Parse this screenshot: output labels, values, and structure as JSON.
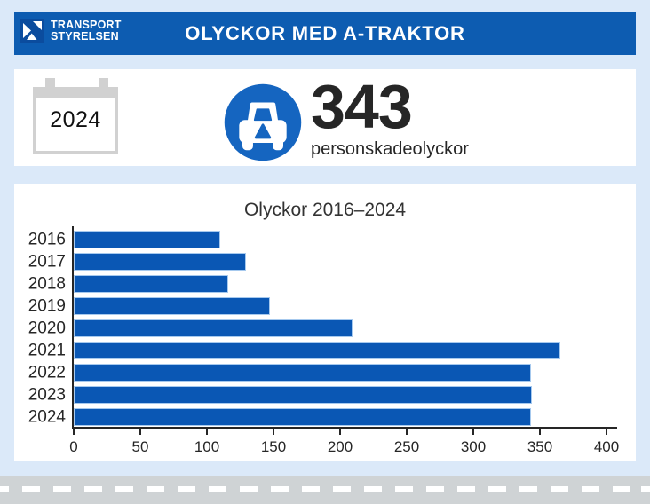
{
  "header": {
    "logo_line1": "TRANSPORT",
    "logo_line2": "STYRELSEN",
    "title": "OLYCKOR MED A-TRAKTOR"
  },
  "summary": {
    "year": "2024",
    "count": "343",
    "count_label": "personskadeolyckor"
  },
  "chart_data": {
    "type": "bar",
    "orientation": "horizontal",
    "title": "Olyckor 2016–2024",
    "categories": [
      "2016",
      "2017",
      "2018",
      "2019",
      "2020",
      "2021",
      "2022",
      "2023",
      "2024"
    ],
    "values": [
      110,
      129,
      116,
      147,
      209,
      365,
      343,
      344,
      343
    ],
    "xlabel": "",
    "ylabel": "",
    "xlim": [
      0,
      400
    ],
    "xticks": [
      0,
      50,
      100,
      150,
      200,
      250,
      300,
      350,
      400
    ],
    "grid": false,
    "legend": false
  },
  "icons": {
    "logo": "transportstyrelsen-arrow-mark",
    "calendar": "calendar",
    "car": "car-front-in-blue-circle"
  },
  "colors": {
    "background": "#dbe9f9",
    "header_blue": "#0d5cb1",
    "logo_square_blue": "#0b4c9e",
    "bar_blue": "#0a57b4",
    "bar_edge": "#a6c9ee",
    "icon_circle_blue": "#1565c0",
    "text_dark": "#262626",
    "calendar_gray": "#d1d1d1",
    "road_gray": "#cfd3d5",
    "dash_white": "#ffffff",
    "card_white": "#ffffff"
  }
}
